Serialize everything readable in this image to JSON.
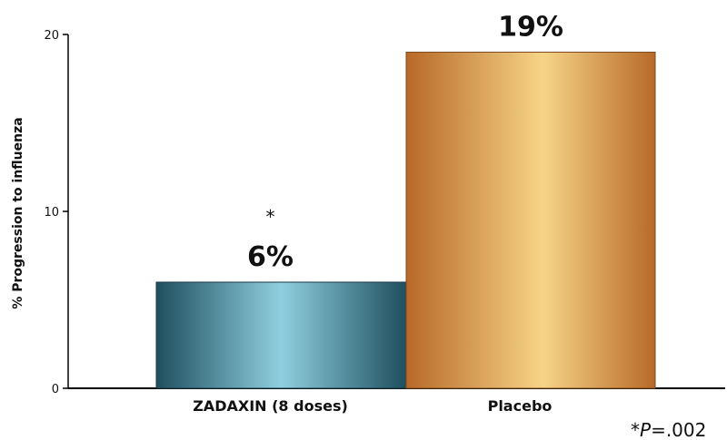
{
  "chart_data": {
    "type": "bar",
    "categories": [
      "ZADAXIN (8 doses)",
      "Placebo"
    ],
    "values": [
      6,
      19
    ],
    "data_labels": [
      "6%",
      "19%"
    ],
    "significance_marks": [
      "*",
      ""
    ],
    "title": "",
    "xlabel": "",
    "ylabel": "% Progression to influenza",
    "ylim": [
      0,
      20
    ],
    "yticks": [
      0,
      10,
      20
    ],
    "grid": false,
    "legend": "none",
    "colors": {
      "zadaxin": {
        "edge": "#1f4f5e",
        "center": "#8fcfdf"
      },
      "placebo": {
        "edge": "#b8692a",
        "center": "#f6d487"
      },
      "axis": "#000000"
    }
  },
  "footnote": {
    "star": "*",
    "p_italic": "P",
    "value": "=.002"
  }
}
